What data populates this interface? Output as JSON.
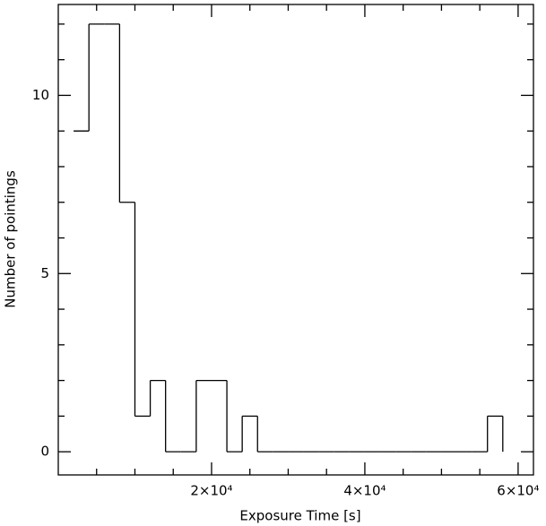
{
  "chart_data": {
    "type": "histogram",
    "xlabel": "Exposure Time [s]",
    "ylabel": "Number of pointings",
    "bins": [
      2000,
      4000,
      6000,
      8000,
      10000,
      12000,
      14000,
      16000,
      18000,
      20000,
      22000,
      24000,
      26000,
      28000,
      30000,
      32000,
      34000,
      36000,
      38000,
      40000,
      42000,
      44000,
      46000,
      48000,
      50000,
      52000,
      54000,
      56000,
      58000
    ],
    "values": [
      9,
      12,
      12,
      7,
      1,
      2,
      0,
      0,
      2,
      2,
      0,
      1,
      0,
      0,
      0,
      0,
      0,
      0,
      0,
      0,
      0,
      0,
      0,
      0,
      0,
      0,
      0,
      1
    ],
    "color": "#000000",
    "xlim": [
      0,
      62000
    ],
    "ylim": [
      -0.65,
      12.55
    ],
    "xticks": [
      {
        "value": 20000,
        "label": "2×10⁴"
      },
      {
        "value": 40000,
        "label": "4×10⁴"
      },
      {
        "value": 60000,
        "label": "6×10⁴"
      }
    ],
    "yticks": [
      0,
      5,
      10
    ],
    "xminorticks": [
      5000,
      10000,
      15000,
      25000,
      30000,
      35000,
      45000,
      50000,
      55000
    ],
    "yminorticks": [
      1,
      2,
      3,
      4,
      6,
      7,
      8,
      9,
      11,
      12
    ]
  }
}
